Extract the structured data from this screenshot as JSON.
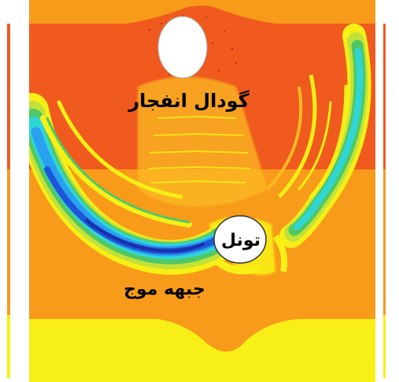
{
  "labels": {
    "crater": "گودال انفجار",
    "tunnel": "تونل",
    "wavefront": "جبهه موج"
  },
  "colors": {
    "background": "#ffffff",
    "red_orange": "#f05a1e",
    "orange": "#f89a1a",
    "light_orange": "#fbbb22",
    "yellow": "#f8ef16",
    "yellow_green": "#c2e23a",
    "green": "#50c864",
    "cyan": "#2fd6d8",
    "light_blue": "#2aa0f0",
    "blue": "#1f56d8",
    "dark_blue": "#1b2fa8",
    "red": "#e83018",
    "white": "#ffffff"
  }
}
